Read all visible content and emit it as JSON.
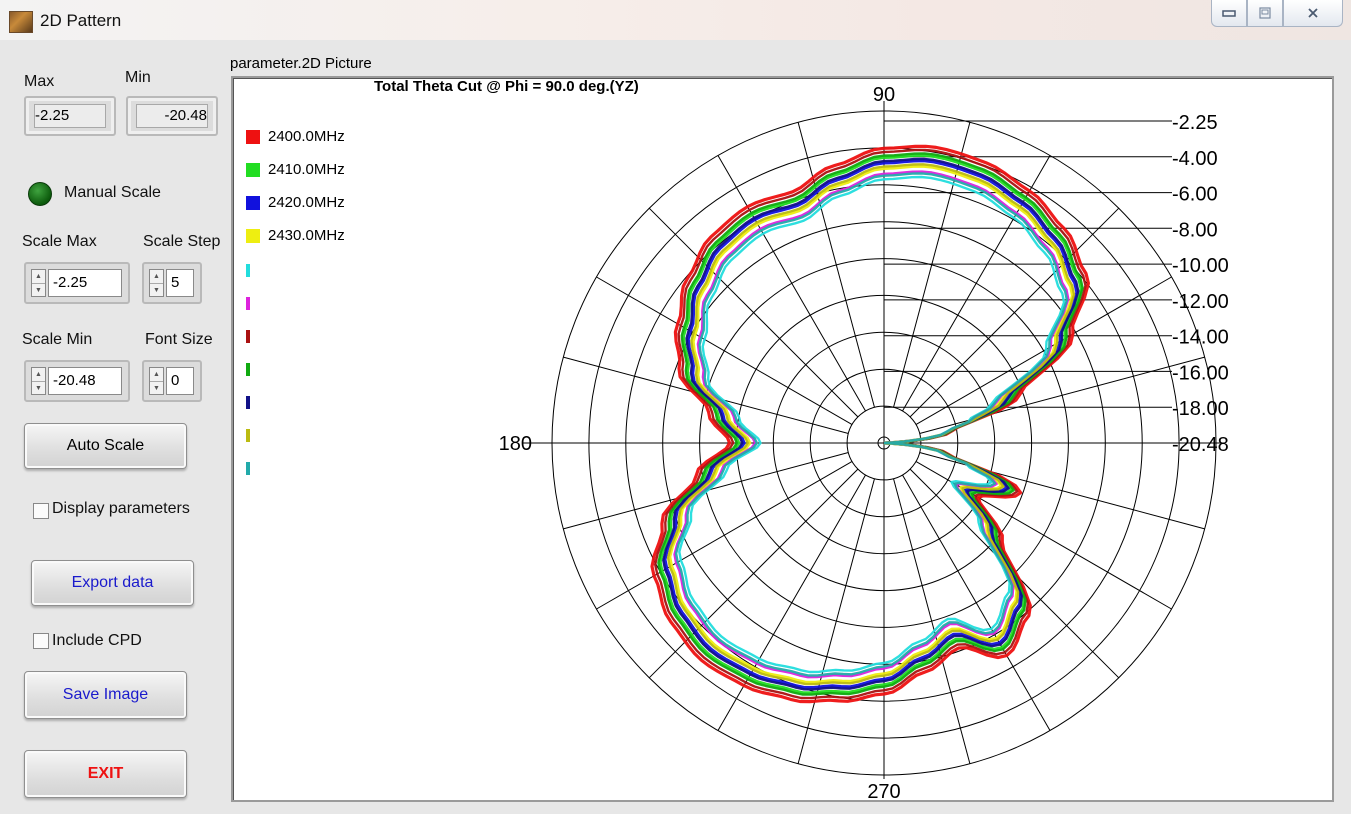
{
  "window": {
    "title": "2D Pattern",
    "min_icon": "minimize-icon",
    "max_icon": "maximize-icon",
    "close_icon": "close-icon"
  },
  "controls": {
    "max_label": "Max",
    "min_label": "Min",
    "max_value": "-2.25",
    "min_value": "-20.48",
    "manual_scale_label": "Manual Scale",
    "manual_scale_on": true,
    "scale_max_label": "Scale Max",
    "scale_max_value": "-2.25",
    "scale_step_label": "Scale Step",
    "scale_step_value": "5",
    "scale_min_label": "Scale Min",
    "scale_min_value": "-20.48",
    "font_size_label": "Font Size",
    "font_size_value": "0",
    "auto_scale_label": "Auto Scale",
    "display_parameters_label": "Display parameters",
    "display_parameters_checked": false,
    "export_label": "Export data",
    "include_cpd_label": "Include CPD",
    "include_cpd_checked": false,
    "save_image_label": "Save Image",
    "exit_label": "EXIT"
  },
  "plot": {
    "panel_label": "parameter.2D Picture"
  },
  "chart_data": {
    "type": "polar",
    "title": "Total  Theta Cut @ Phi = 90.0 deg.(YZ)",
    "angle_labels": {
      "top": "90",
      "left": "180",
      "bottom": "270"
    },
    "radial_ticks": [
      "-2.25",
      "-4.00",
      "-6.00",
      "-8.00",
      "-10.00",
      "-12.00",
      "-14.00",
      "-16.00",
      "-18.00",
      "-20.48"
    ],
    "rlim": [
      -20.48,
      -2.25
    ],
    "grid": true,
    "legend_position": "top-left",
    "series": [
      {
        "name": "2400.0MHz",
        "color": "#ee1111",
        "shift": 0.5
      },
      {
        "name": "2410.0MHz",
        "color": "#22dd22",
        "shift": 0.0
      },
      {
        "name": "2420.0MHz",
        "color": "#1111dd",
        "shift": -0.3
      },
      {
        "name": "2430.0MHz",
        "color": "#eeee11",
        "shift": -0.6
      },
      {
        "name": "",
        "color": "#22dddd",
        "shift": -1.2
      },
      {
        "name": "",
        "color": "#dd22dd",
        "shift": -0.9
      },
      {
        "name": "",
        "color": "#aa1111",
        "shift": 0.3
      },
      {
        "name": "",
        "color": "#11aa11",
        "shift": 0.1
      },
      {
        "name": "",
        "color": "#111188",
        "shift": -0.2
      },
      {
        "name": "",
        "color": "#bbbb11",
        "shift": -0.5
      },
      {
        "name": "",
        "color": "#22aaaa",
        "shift": -1.0
      }
    ],
    "base_pattern": {
      "angles_deg": [
        0,
        10,
        20,
        30,
        40,
        50,
        60,
        70,
        80,
        90,
        100,
        110,
        120,
        130,
        140,
        150,
        160,
        170,
        180,
        190,
        200,
        210,
        220,
        230,
        240,
        250,
        260,
        270,
        280,
        290,
        300,
        310,
        320,
        330,
        340,
        350
      ],
      "values_db": [
        -20.4,
        -16.8,
        -13.0,
        -9.0,
        -6.5,
        -5.6,
        -5.0,
        -4.6,
        -4.5,
        -4.8,
        -5.5,
        -6.3,
        -6.0,
        -6.2,
        -6.9,
        -7.9,
        -9.0,
        -11.2,
        -12.5,
        -10.5,
        -8.0,
        -6.4,
        -5.7,
        -5.4,
        -5.6,
        -6.0,
        -6.6,
        -7.2,
        -8.2,
        -9.0,
        -7.5,
        -8.6,
        -12.5,
        -15.0,
        -13.0,
        -17.0
      ]
    }
  }
}
